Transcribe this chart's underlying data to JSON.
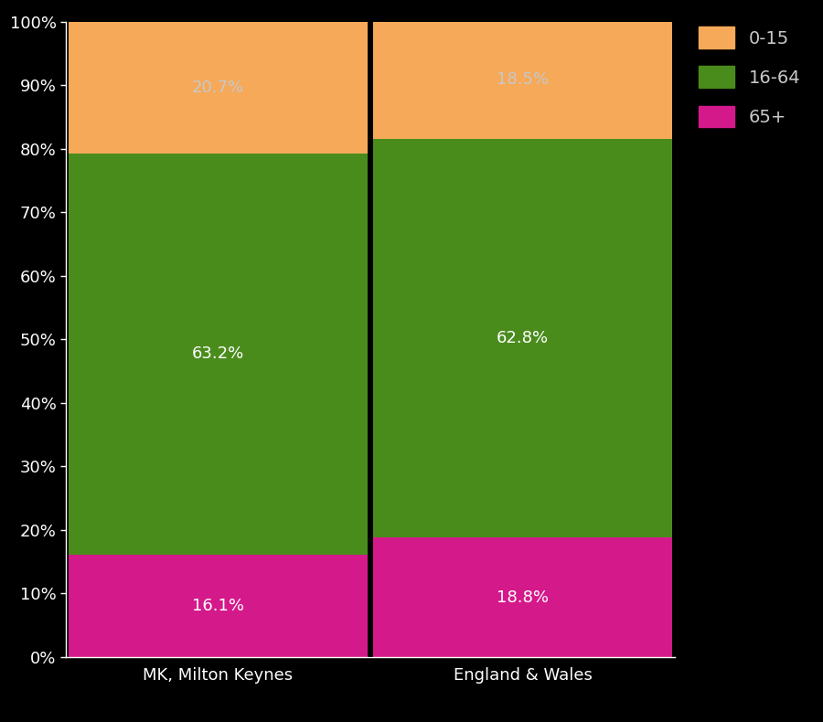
{
  "categories": [
    "MK, Milton Keynes",
    "England & Wales"
  ],
  "segments": {
    "65+": [
      16.1,
      18.8
    ],
    "16-64": [
      63.2,
      62.8
    ],
    "0-15": [
      20.7,
      18.5
    ]
  },
  "colors": {
    "65+": "#d4198a",
    "16-64": "#4a8c1c",
    "0-15": "#f5a959"
  },
  "background_color": "#000000",
  "axes_facecolor": "#000000",
  "text_color": "#ffffff",
  "label_color_65": "#ffffff",
  "label_color_1664": "#ffffff",
  "label_color_015": "#c8c8c8",
  "ylim": [
    0,
    100
  ],
  "ytick_labels": [
    "0%",
    "10%",
    "20%",
    "30%",
    "40%",
    "50%",
    "60%",
    "70%",
    "80%",
    "90%",
    "100%"
  ],
  "ytick_values": [
    0,
    10,
    20,
    30,
    40,
    50,
    60,
    70,
    80,
    90,
    100
  ],
  "legend_order": [
    "0-15",
    "16-64",
    "65+"
  ],
  "legend_text_color": "#c8c8c8",
  "bar_width": 0.98,
  "label_fontsize": 13,
  "tick_fontsize": 13,
  "legend_fontsize": 14,
  "divider_color": "#000000",
  "divider_linewidth": 2.0,
  "spine_color": "#ffffff",
  "grid_color": "#555555",
  "xlim": [
    -0.5,
    1.5
  ]
}
